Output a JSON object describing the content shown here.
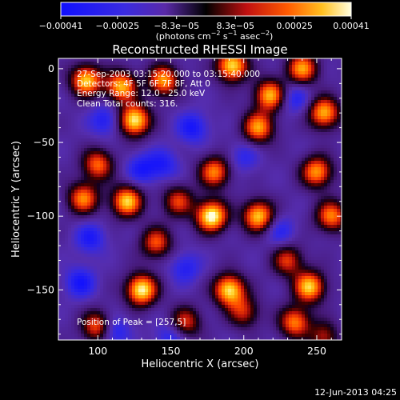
{
  "chart_data": {
    "type": "heatmap",
    "title": "Reconstructed RHESSI Image",
    "xlabel": "Heliocentric X (arcsec)",
    "ylabel": "Heliocentric Y (arcsec)",
    "xlim": [
      73,
      267
    ],
    "ylim": [
      -184,
      7
    ],
    "x_ticks": [
      100,
      150,
      200,
      250
    ],
    "x_tick_labels": [
      "100",
      "150",
      "200",
      "250"
    ],
    "y_ticks": [
      0,
      -50,
      -100,
      -150
    ],
    "y_tick_labels": [
      "0",
      "−50",
      "−100",
      "−150"
    ],
    "colorbar": {
      "range": [
        -0.00041,
        0.00041
      ],
      "ticks": [
        -0.00041,
        -0.00025,
        -8.3e-05,
        8.3e-05,
        0.00025,
        0.00041
      ],
      "tick_labels": [
        "−0.00041",
        "−0.00025",
        "−8.3e−05",
        "8.3e−05",
        "0.00025",
        "0.00041"
      ],
      "unit_parts": [
        "(photons cm",
        "−2",
        " s",
        "−1",
        " asec",
        "−2",
        ")"
      ]
    },
    "annotations": {
      "time": "27-Sep-2003 03:15:20.000 to 03:15:40.000",
      "detectors": "Detectors: 4F 5F 6F 7F 8F, Att 0",
      "energy": "Energy Range: 12.0 - 25.0 keV",
      "method": "Clean     Total counts: 316.",
      "peak": "Position of Peak = [257,5]"
    },
    "footer_date": "12-Jun-2013 04:25",
    "emission_blobs": [
      {
        "x": 92,
        "y": -8,
        "v": 0.85
      },
      {
        "x": 116,
        "y": -12,
        "v": 0.8
      },
      {
        "x": 145,
        "y": -8,
        "v": 0.75
      },
      {
        "x": 192,
        "y": 2,
        "v": 0.9
      },
      {
        "x": 240,
        "y": 0,
        "v": 0.75
      },
      {
        "x": 218,
        "y": -18,
        "v": 0.8
      },
      {
        "x": 125,
        "y": -35,
        "v": 0.95
      },
      {
        "x": 210,
        "y": -40,
        "v": 0.75
      },
      {
        "x": 255,
        "y": -30,
        "v": 0.8
      },
      {
        "x": 100,
        "y": -65,
        "v": 0.65
      },
      {
        "x": 180,
        "y": -70,
        "v": 0.7
      },
      {
        "x": 250,
        "y": -70,
        "v": 0.75
      },
      {
        "x": 90,
        "y": -88,
        "v": 0.7
      },
      {
        "x": 120,
        "y": -90,
        "v": 0.85
      },
      {
        "x": 155,
        "y": -90,
        "v": 0.55
      },
      {
        "x": 178,
        "y": -100,
        "v": 1.0
      },
      {
        "x": 210,
        "y": -100,
        "v": 0.85
      },
      {
        "x": 260,
        "y": -100,
        "v": 0.7
      },
      {
        "x": 140,
        "y": -118,
        "v": 0.6
      },
      {
        "x": 230,
        "y": -130,
        "v": 0.55
      },
      {
        "x": 130,
        "y": -150,
        "v": 0.95
      },
      {
        "x": 190,
        "y": -150,
        "v": 0.9
      },
      {
        "x": 245,
        "y": -148,
        "v": 0.85
      },
      {
        "x": 100,
        "y": -175,
        "v": 0.7
      },
      {
        "x": 160,
        "y": -172,
        "v": 0.55
      },
      {
        "x": 200,
        "y": -165,
        "v": 0.5
      },
      {
        "x": 235,
        "y": -172,
        "v": 0.7
      },
      {
        "x": 257,
        "y": -182,
        "v": 0.8
      },
      {
        "x": 105,
        "y": -35,
        "v": -0.5
      },
      {
        "x": 165,
        "y": -40,
        "v": -0.55
      },
      {
        "x": 235,
        "y": -20,
        "v": -0.45
      },
      {
        "x": 145,
        "y": -65,
        "v": -0.45
      },
      {
        "x": 200,
        "y": -60,
        "v": -0.35
      },
      {
        "x": 130,
        "y": -68,
        "v": -0.5
      },
      {
        "x": 95,
        "y": -115,
        "v": -0.5
      },
      {
        "x": 160,
        "y": -135,
        "v": -0.45
      },
      {
        "x": 225,
        "y": -110,
        "v": -0.4
      },
      {
        "x": 88,
        "y": -145,
        "v": -0.55
      },
      {
        "x": 110,
        "y": -178,
        "v": -0.6
      },
      {
        "x": 150,
        "y": -182,
        "v": -0.45
      },
      {
        "x": 260,
        "y": -182,
        "v": -0.55
      }
    ]
  }
}
